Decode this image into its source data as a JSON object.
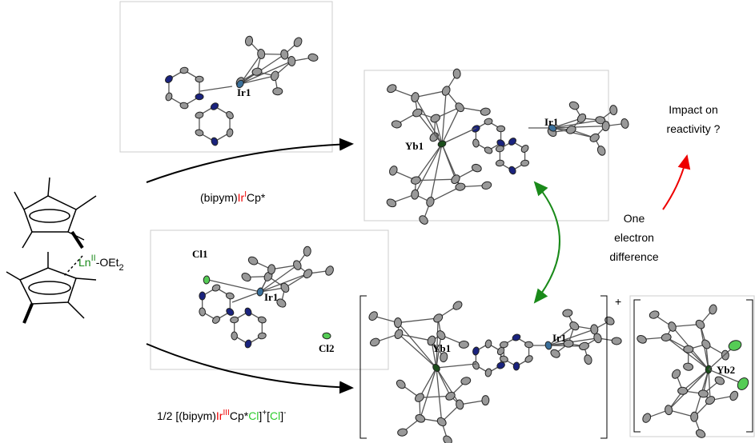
{
  "top_structure": {
    "labels": [
      "Ir1"
    ]
  },
  "top_reagent": [
    "(bipym)",
    "Ir",
    "I",
    "Cp*"
  ],
  "ln_complex": [
    "Ln",
    "II",
    "-OEt",
    "2"
  ],
  "product_structure": {
    "labels": [
      "Yb1",
      "Ir1"
    ]
  },
  "lower_structure": {
    "labels": [
      "Cl1",
      "Ir1",
      "Cl2"
    ]
  },
  "bottom_reagent": [
    "1/2 [(bipym)",
    "Ir",
    "III",
    "Cp*",
    "Cl",
    "]",
    "+",
    "[",
    "Cl",
    "]",
    "-"
  ],
  "cation_structure": {
    "labels": [
      "Yb1",
      "Ir1"
    ],
    "charge": "+"
  },
  "anion_structure": {
    "labels": [
      "Yb2"
    ]
  },
  "annotations": {
    "difference": [
      "One",
      "electron",
      "difference"
    ],
    "impact": [
      "Impact on",
      "reactivity ?"
    ]
  }
}
